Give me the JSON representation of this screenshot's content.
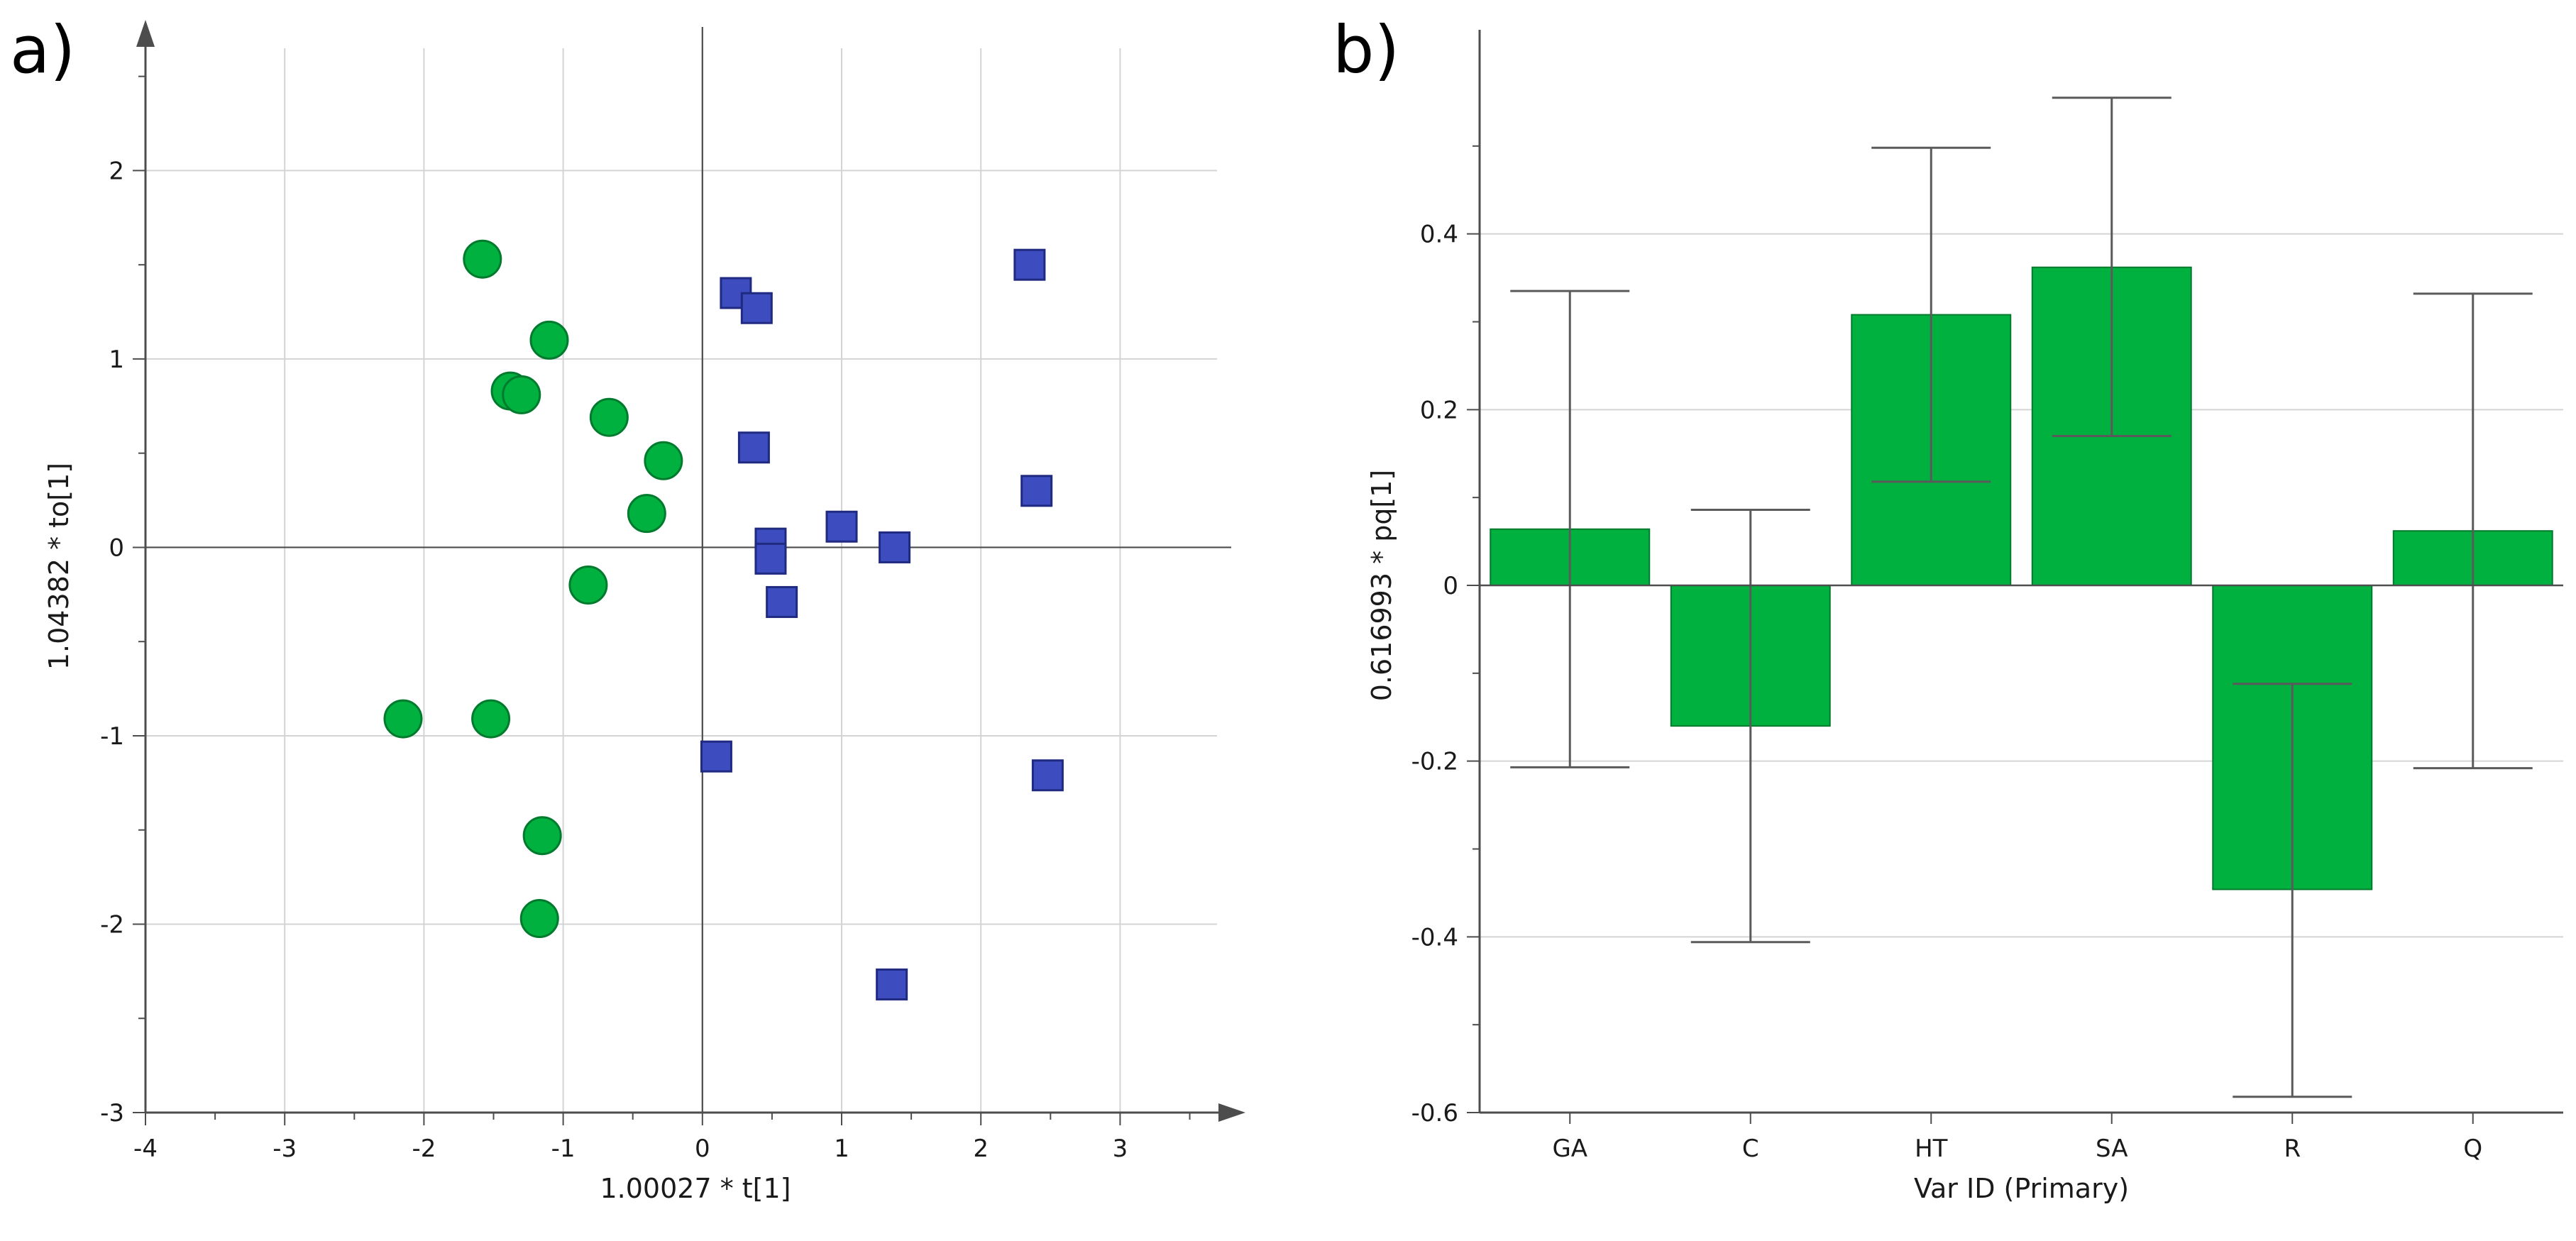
{
  "colors": {
    "circle_fill": "#00B140",
    "circle_stroke": "#007A2C",
    "square_fill": "#3D4DBF",
    "square_stroke": "#1F2A80",
    "bar_fill": "#00B140",
    "bar_stroke": "#007A2C",
    "grid": "#d4d4d4",
    "axis": "#4d4d4d",
    "error_bar": "#5a5a5a"
  },
  "chart_data": [
    {
      "type": "scatter",
      "panel_label": "a)",
      "title": "",
      "xlabel": "1.00027 * t[1]",
      "ylabel": "1.04382 * to[1]",
      "xlim": [
        -4,
        3.9
      ],
      "ylim": [
        -3,
        2.8
      ],
      "xticks": [
        -4,
        -3,
        -2,
        -1,
        0,
        1,
        2,
        3
      ],
      "yticks": [
        -3,
        -2,
        -1,
        0,
        1,
        2
      ],
      "xtick_labels": [
        "-4",
        "-3",
        "-2",
        "-1",
        "0",
        "1",
        "2",
        "3"
      ],
      "ytick_labels": [
        "-3",
        "-2",
        "-1",
        "0",
        "1",
        "2"
      ],
      "grid": true,
      "series": [
        {
          "name": "group-circle",
          "marker": "circle",
          "points": [
            [
              -1.58,
              1.53
            ],
            [
              -1.1,
              1.1
            ],
            [
              -1.38,
              0.83
            ],
            [
              -1.3,
              0.81
            ],
            [
              -0.67,
              0.69
            ],
            [
              -0.28,
              0.46
            ],
            [
              -0.4,
              0.18
            ],
            [
              -0.82,
              -0.2
            ],
            [
              -2.15,
              -0.91
            ],
            [
              -1.52,
              -0.91
            ],
            [
              -1.15,
              -1.53
            ],
            [
              -1.17,
              -1.97
            ]
          ]
        },
        {
          "name": "group-square",
          "marker": "square",
          "points": [
            [
              0.24,
              1.35
            ],
            [
              0.39,
              1.27
            ],
            [
              2.35,
              1.5
            ],
            [
              0.37,
              0.53
            ],
            [
              2.4,
              0.3
            ],
            [
              1.0,
              0.11
            ],
            [
              0.49,
              0.02
            ],
            [
              0.49,
              -0.06
            ],
            [
              1.38,
              0.0
            ],
            [
              0.57,
              -0.29
            ],
            [
              0.1,
              -1.11
            ],
            [
              2.48,
              -1.21
            ],
            [
              1.36,
              -2.32
            ]
          ]
        }
      ]
    },
    {
      "type": "bar",
      "panel_label": "b)",
      "title": "",
      "xlabel": "Var ID (Primary)",
      "ylabel": "0.616993 * pq[1]",
      "categories": [
        "GA",
        "C",
        "HT",
        "SA",
        "R",
        "Q"
      ],
      "values": [
        0.064,
        -0.16,
        0.308,
        0.362,
        -0.346,
        0.062
      ],
      "error_low": [
        -0.207,
        -0.406,
        0.118,
        0.17,
        -0.582,
        -0.208
      ],
      "error_high": [
        0.335,
        0.086,
        0.498,
        0.555,
        -0.112,
        0.332
      ],
      "ylim": [
        -0.6,
        0.6
      ],
      "yticks": [
        -0.6,
        -0.4,
        -0.2,
        0,
        0.2,
        0.4
      ],
      "ytick_labels": [
        "-0.6",
        "-0.4",
        "-0.2",
        "0",
        "0.2",
        "0.4"
      ],
      "grid": true
    }
  ]
}
